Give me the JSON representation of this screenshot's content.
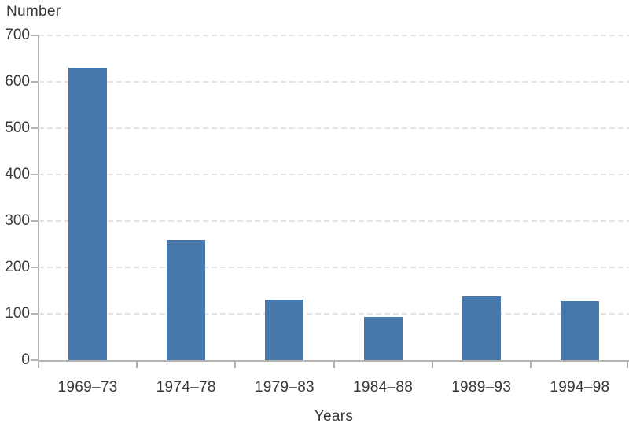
{
  "chart_data": {
    "type": "bar",
    "title": "",
    "ylabel": "Number",
    "xlabel": "Years",
    "categories": [
      "1969–73",
      "1974–78",
      "1979–83",
      "1984–88",
      "1989–93",
      "1994–98"
    ],
    "values": [
      630,
      260,
      130,
      93,
      138,
      127
    ],
    "ylim": [
      0,
      700
    ],
    "yticks": [
      0,
      100,
      200,
      300,
      400,
      500,
      600,
      700
    ],
    "grid": "horizontal dashed",
    "legend": "none",
    "colors": {
      "bar": "#4879AD",
      "axis": "#b3b3b3",
      "grid": "#e4e4e4",
      "text": "#383838"
    }
  }
}
